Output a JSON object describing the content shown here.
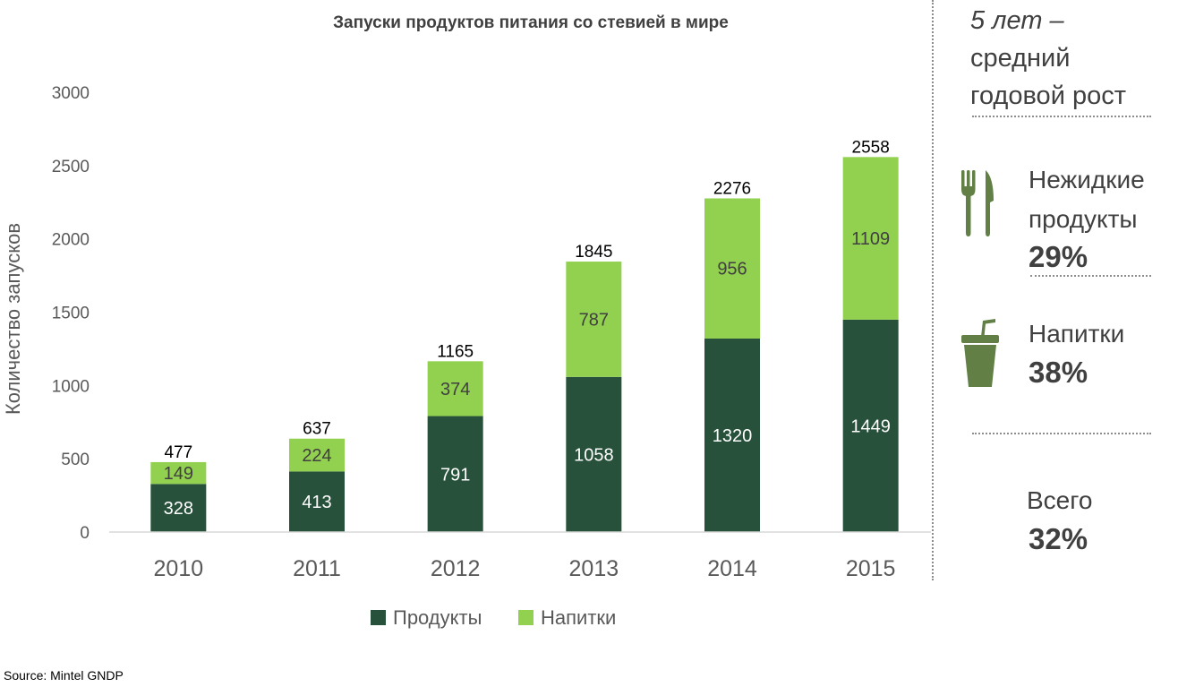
{
  "chart_data": {
    "type": "bar",
    "stacked": true,
    "title": "Запуски продуктов питания со стевией в мире",
    "ylabel": "Количество запусков",
    "xlabel": "",
    "ylim": [
      0,
      3000
    ],
    "yticks": [
      "0",
      "500",
      "1000",
      "1500",
      "2000",
      "2500",
      "3000"
    ],
    "categories": [
      "2010",
      "2011",
      "2012",
      "2013",
      "2014",
      "2015"
    ],
    "series": [
      {
        "name": "Продукты",
        "color": "#27513A",
        "label_color": "#ffffff",
        "values": [
          328,
          413,
          791,
          1058,
          1320,
          1449
        ]
      },
      {
        "name": "Напитки",
        "color": "#92D050",
        "label_color": "#404040",
        "values": [
          149,
          224,
          374,
          787,
          956,
          1109
        ]
      }
    ],
    "totals": [
      477,
      637,
      1165,
      1845,
      2276,
      2558
    ],
    "legend_position": "bottom",
    "grid": false
  },
  "sidebar": {
    "heading_lines": [
      "5 лет –",
      "средний",
      "годовой рост"
    ],
    "categories": [
      {
        "name_lines": [
          "Нежидкие",
          "продукты"
        ],
        "pct": "29%",
        "icon": "fork-knife-icon"
      },
      {
        "name_lines": [
          "Напитки"
        ],
        "pct": "38%",
        "icon": "cup-straw-icon"
      },
      {
        "name_lines": [
          "Всего"
        ],
        "pct": "32%",
        "icon": ""
      }
    ],
    "icon_color": "#628045"
  },
  "source": "Source: Mintel GNDP"
}
